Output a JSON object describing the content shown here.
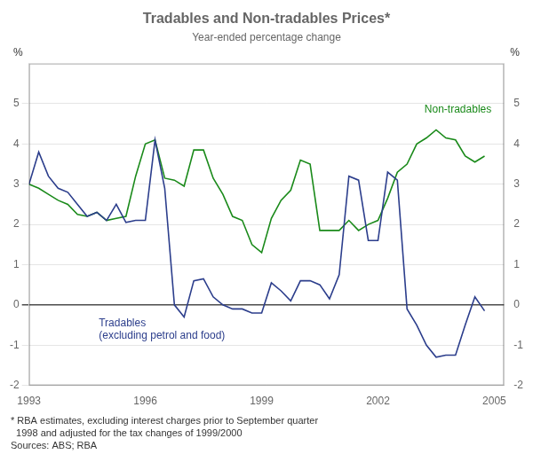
{
  "chart_data": {
    "type": "line",
    "title": "Tradables and Non-tradables Prices*",
    "subtitle": "Year-ended percentage change",
    "ylabel": "%",
    "y2label": "%",
    "footnote": "* RBA estimates, excluding interest charges prior to September quarter\n  1998 and adjusted for the tax changes of 1999/2000\nSources: ABS; RBA",
    "x": [
      1993,
      1993.25,
      1993.5,
      1993.75,
      1994,
      1994.25,
      1994.5,
      1994.75,
      1995,
      1995.25,
      1995.5,
      1995.75,
      1996,
      1996.25,
      1996.5,
      1996.75,
      1997,
      1997.25,
      1997.5,
      1997.75,
      1998,
      1998.25,
      1998.5,
      1998.75,
      1999,
      1999.25,
      1999.5,
      1999.75,
      2000,
      2000.25,
      2000.5,
      2000.75,
      2001,
      2001.25,
      2001.5,
      2001.75,
      2002,
      2002.25,
      2002.5,
      2002.75,
      2003,
      2003.25,
      2003.5,
      2003.75,
      2004,
      2004.25,
      2004.5,
      2004.75
    ],
    "series": [
      {
        "color": "#2c3e8c",
        "values": [
          3.0,
          3.8,
          3.2,
          2.9,
          2.8,
          2.5,
          2.2,
          2.3,
          2.1,
          2.5,
          2.05,
          2.1,
          2.1,
          4.1,
          2.9,
          0.0,
          -0.3,
          0.6,
          0.65,
          0.2,
          0.0,
          -0.1,
          -0.1,
          -0.2,
          -0.2,
          0.55,
          0.35,
          0.1,
          0.6,
          0.6,
          0.5,
          0.15,
          0.75,
          3.2,
          3.1,
          1.6,
          1.6,
          3.3,
          3.1,
          -0.1,
          -0.5,
          -1.0,
          -1.3,
          -1.25,
          -1.25,
          -0.5,
          0.2,
          -0.15
        ]
      },
      {
        "color": "#1a8a1a",
        "values": [
          3.0,
          2.9,
          2.75,
          2.6,
          2.5,
          2.25,
          2.2,
          2.3,
          2.1,
          2.15,
          2.2,
          3.2,
          4.0,
          4.1,
          3.15,
          3.1,
          2.95,
          3.85,
          3.85,
          3.15,
          2.75,
          2.2,
          2.1,
          1.5,
          1.3,
          2.15,
          2.6,
          2.85,
          3.6,
          3.5,
          1.85,
          1.85,
          1.85,
          2.1,
          1.85,
          2.0,
          2.1,
          2.65,
          3.3,
          3.5,
          4.0,
          4.15,
          4.35,
          4.15,
          4.1,
          3.7,
          3.55,
          3.7
        ]
      }
    ],
    "xlim": [
      1993,
      2005.25
    ],
    "xticks": [
      1993,
      1996,
      1999,
      2002,
      2005
    ],
    "ylim": [
      -2,
      6
    ],
    "yticks": [
      -2,
      -1,
      0,
      1,
      2,
      3,
      4,
      5
    ],
    "y2lim": [
      -2,
      6
    ],
    "y2ticks": [
      -2,
      -1,
      0,
      1,
      2,
      3,
      4,
      5
    ],
    "grid": true,
    "annotations": [
      {
        "text": "Tradables\n(excluding petrol and food)",
        "x": 1994.8,
        "y": -0.62,
        "color": "#2c3e8c"
      },
      {
        "text": "Non-tradables",
        "x": 2003.2,
        "y": 4.85,
        "color": "#1a8a1a"
      }
    ]
  }
}
